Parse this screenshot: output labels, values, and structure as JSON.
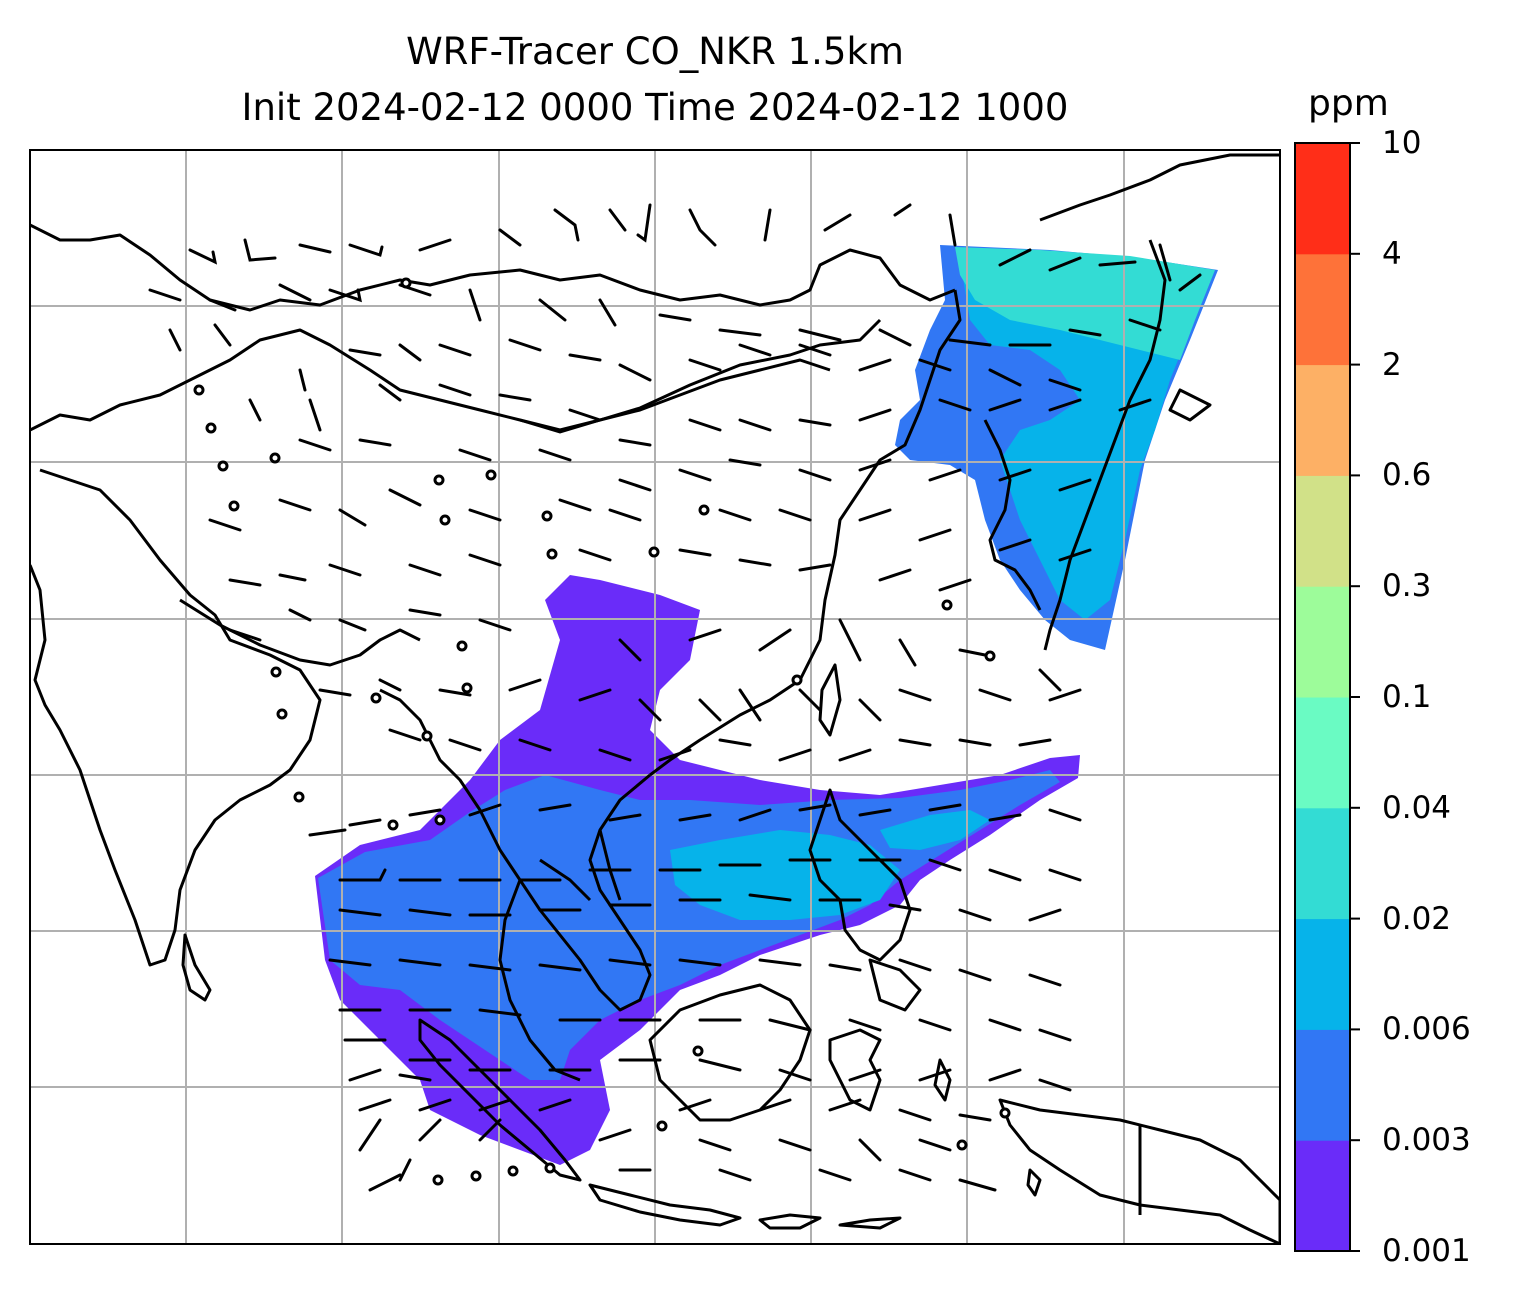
{
  "title_line1": "WRF-Tracer CO_NKR 1.5km",
  "title_line2": "Init 2024-02-12 0000 Time 2024-02-12 1000",
  "colorbar": {
    "units": "ppm",
    "levels": [
      "0.001",
      "0.003",
      "0.006",
      "0.02",
      "0.04",
      "0.1",
      "0.3",
      "0.6",
      "2",
      "4",
      "10"
    ],
    "colors": [
      "#6a2cf9",
      "#3177f4",
      "#06b3ea",
      "#33dcd4",
      "#6afbc3",
      "#9dfc9a",
      "#d1e188",
      "#fdb065",
      "#fe7239",
      "#ff2e18"
    ]
  },
  "map": {
    "field_colors": {
      "violet": "#6a2cf9",
      "blue": "#3177f4",
      "cyan": "#06b3ea",
      "teal": "#33dcd4"
    },
    "coastline_color": "#000000",
    "gridline_color": "#b0b0b0",
    "wind_barbs": true,
    "gridlines": true
  }
}
